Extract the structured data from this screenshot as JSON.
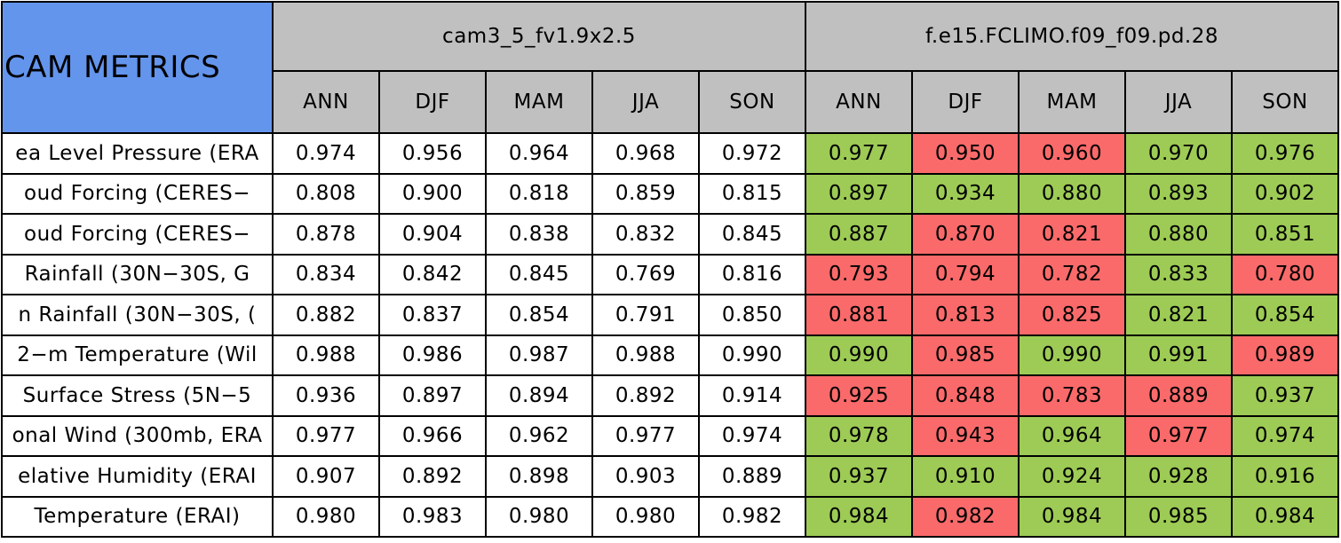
{
  "header": {
    "title": "CAM METRICS",
    "groups": [
      {
        "name": "cam3_5_fv1.9x2.5"
      },
      {
        "name": "f.e15.FCLIMO.f09_f09.pd.28"
      }
    ],
    "seasons": [
      "ANN",
      "DJF",
      "MAM",
      "JJA",
      "SON"
    ]
  },
  "colors": {
    "green": "#9dcb55",
    "red": "#fa6a6a",
    "header": "#c0c0c0",
    "title": "#6495ed"
  },
  "table": {
    "rows": [
      {
        "label": "ea Level Pressure (ERA",
        "values": [
          "0.974",
          "0.956",
          "0.964",
          "0.968",
          "0.972",
          "0.977",
          "0.950",
          "0.960",
          "0.970",
          "0.976"
        ],
        "colors": [
          "green",
          "red",
          "red",
          "green",
          "green"
        ]
      },
      {
        "label": "oud Forcing (CERES−",
        "values": [
          "0.808",
          "0.900",
          "0.818",
          "0.859",
          "0.815",
          "0.897",
          "0.934",
          "0.880",
          "0.893",
          "0.902"
        ],
        "colors": [
          "green",
          "green",
          "green",
          "green",
          "green"
        ]
      },
      {
        "label": "oud Forcing (CERES−",
        "values": [
          "0.878",
          "0.904",
          "0.838",
          "0.832",
          "0.845",
          "0.887",
          "0.870",
          "0.821",
          "0.880",
          "0.851"
        ],
        "colors": [
          "green",
          "red",
          "red",
          "green",
          "green"
        ]
      },
      {
        "label": "Rainfall (30N−30S, G",
        "values": [
          "0.834",
          "0.842",
          "0.845",
          "0.769",
          "0.816",
          "0.793",
          "0.794",
          "0.782",
          "0.833",
          "0.780"
        ],
        "colors": [
          "red",
          "red",
          "red",
          "green",
          "red"
        ]
      },
      {
        "label": "n Rainfall (30N−30S, (",
        "values": [
          "0.882",
          "0.837",
          "0.854",
          "0.791",
          "0.850",
          "0.881",
          "0.813",
          "0.825",
          "0.821",
          "0.854"
        ],
        "colors": [
          "red",
          "red",
          "red",
          "green",
          "green"
        ]
      },
      {
        "label": "2−m Temperature (Wil",
        "values": [
          "0.988",
          "0.986",
          "0.987",
          "0.988",
          "0.990",
          "0.990",
          "0.985",
          "0.990",
          "0.991",
          "0.989"
        ],
        "colors": [
          "green",
          "red",
          "green",
          "green",
          "red"
        ]
      },
      {
        "label": "Surface Stress (5N−5",
        "values": [
          "0.936",
          "0.897",
          "0.894",
          "0.892",
          "0.914",
          "0.925",
          "0.848",
          "0.783",
          "0.889",
          "0.937"
        ],
        "colors": [
          "red",
          "red",
          "red",
          "red",
          "green"
        ]
      },
      {
        "label": "onal Wind (300mb, ERA",
        "values": [
          "0.977",
          "0.966",
          "0.962",
          "0.977",
          "0.974",
          "0.978",
          "0.943",
          "0.964",
          "0.977",
          "0.974"
        ],
        "colors": [
          "green",
          "red",
          "green",
          "red",
          "green"
        ]
      },
      {
        "label": "elative Humidity (ERAI",
        "values": [
          "0.907",
          "0.892",
          "0.898",
          "0.903",
          "0.889",
          "0.937",
          "0.910",
          "0.924",
          "0.928",
          "0.916"
        ],
        "colors": [
          "green",
          "green",
          "green",
          "green",
          "green"
        ]
      },
      {
        "label": "Temperature (ERAI)",
        "values": [
          "0.980",
          "0.983",
          "0.980",
          "0.980",
          "0.982",
          "0.984",
          "0.982",
          "0.984",
          "0.985",
          "0.984"
        ],
        "colors": [
          "green",
          "red",
          "green",
          "green",
          "green"
        ]
      }
    ]
  }
}
